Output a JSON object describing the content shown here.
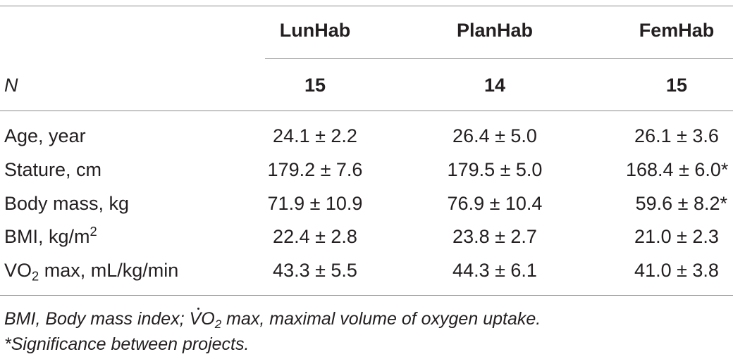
{
  "columns": [
    "LunHab",
    "PlanHab",
    "FemHab"
  ],
  "n_row": {
    "label": "N",
    "values": [
      "15",
      "14",
      "15"
    ]
  },
  "rows": [
    {
      "label": "Age, year",
      "values": [
        "24.1 ± 2.2",
        "26.4 ± 5.0",
        "26.1 ± 3.6"
      ]
    },
    {
      "label": "Stature, cm",
      "values": [
        "179.2 ± 7.6",
        "179.5 ± 5.0",
        "168.4 ± 6.0*"
      ]
    },
    {
      "label": "Body mass, kg",
      "values": [
        "71.9 ± 10.9",
        "76.9 ± 10.4",
        "59.6 ± 8.2*"
      ]
    },
    {
      "label_main": "BMI, kg/m",
      "label_sup": "2",
      "values": [
        "22.4 ± 2.8",
        "23.8 ± 2.7",
        "21.0 ± 2.3"
      ]
    },
    {
      "label_main": "VO",
      "label_sub": "2",
      "label_rest": " max, mL/kg/min",
      "values": [
        "43.3 ± 5.5",
        "44.3 ± 6.1",
        "41.0 ± 3.8"
      ]
    }
  ],
  "footnotes": {
    "line1_a": "BMI, Body mass index; ",
    "line1_v": "V",
    "line1_o": "O",
    "line1_sub": "2",
    "line1_b": " max, maximal volume of oxygen uptake.",
    "line2": "*Significance between projects."
  }
}
